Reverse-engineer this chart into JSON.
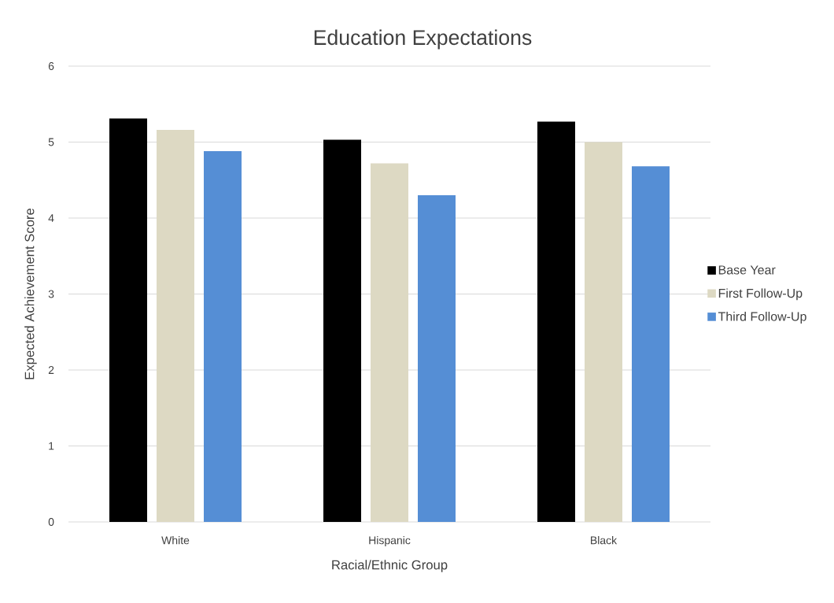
{
  "chart_data": {
    "type": "bar",
    "title": "Education Expectations",
    "xlabel": "Racial/Ethnic Group",
    "ylabel": "Expected Achievement Score",
    "categories": [
      "White",
      "Hispanic",
      "Black"
    ],
    "series": [
      {
        "name": "Base Year",
        "color": "#000000",
        "values": [
          5.31,
          5.03,
          5.27
        ]
      },
      {
        "name": "First Follow-Up",
        "color": "#ddd9c3",
        "values": [
          5.16,
          4.72,
          5.0
        ]
      },
      {
        "name": "Third Follow-Up",
        "color": "#558ed5",
        "values": [
          4.88,
          4.3,
          4.68
        ]
      }
    ],
    "ylim": [
      0,
      6
    ],
    "yticks": [
      0,
      1,
      2,
      3,
      4,
      5,
      6
    ],
    "grid": "y",
    "legend": "right"
  }
}
